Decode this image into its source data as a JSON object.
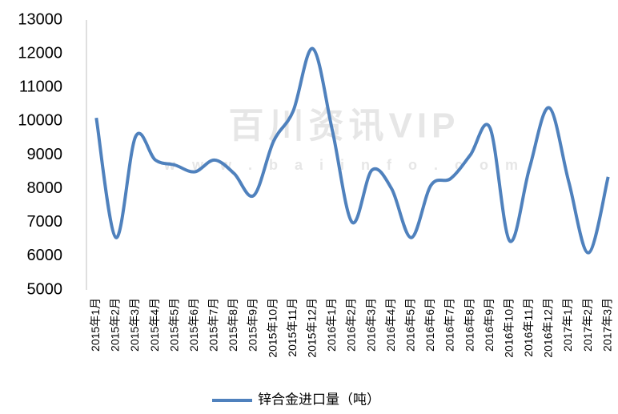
{
  "chart_data": {
    "type": "line",
    "watermark": "百川资讯VIP",
    "watermark_url": "w w w . b a i i n f o . c o m",
    "categories": [
      "2015年1月",
      "2015年2月",
      "2015年3月",
      "2015年4月",
      "2015年5月",
      "2015年6月",
      "2015年7月",
      "2015年8月",
      "2015年9月",
      "2015年10月",
      "2015年11月",
      "2015年12月",
      "2016年1月",
      "2016年2月",
      "2016年3月",
      "2016年4月",
      "2016年5月",
      "2016年6月",
      "2016年7月",
      "2016年8月",
      "2016年9月",
      "2016年10月",
      "2016年11月",
      "2016年12月",
      "2017年1月",
      "2017年2月",
      "2017年3月"
    ],
    "series": [
      {
        "name": "锌合金进口量（吨）",
        "color": "#4f81bd",
        "values": [
          10100,
          6550,
          9550,
          8850,
          8700,
          8500,
          8850,
          8450,
          7800,
          9400,
          10300,
          12150,
          9700,
          7000,
          8550,
          8000,
          6550,
          8100,
          8300,
          9000,
          9800,
          6450,
          8600,
          10400,
          8200,
          6100,
          8350
        ]
      }
    ],
    "ylim": [
      5000,
      13000
    ],
    "yticks": [
      5000,
      6000,
      7000,
      8000,
      9000,
      10000,
      11000,
      12000,
      13000
    ],
    "grid": false,
    "legend": "bottom"
  }
}
